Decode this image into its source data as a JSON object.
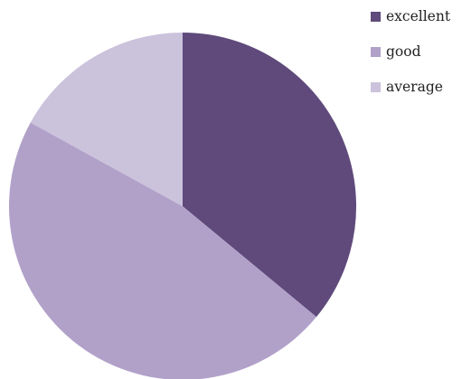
{
  "chart_data": {
    "type": "pie",
    "categories": [
      "excellent",
      "good",
      "average"
    ],
    "values": [
      36,
      47,
      17
    ],
    "colors": [
      "#5f4a7b",
      "#b1a1c9",
      "#cbc2dc"
    ],
    "start_angle_deg": 0,
    "direction": "clockwise",
    "legend_position": "top-right",
    "title": ""
  }
}
